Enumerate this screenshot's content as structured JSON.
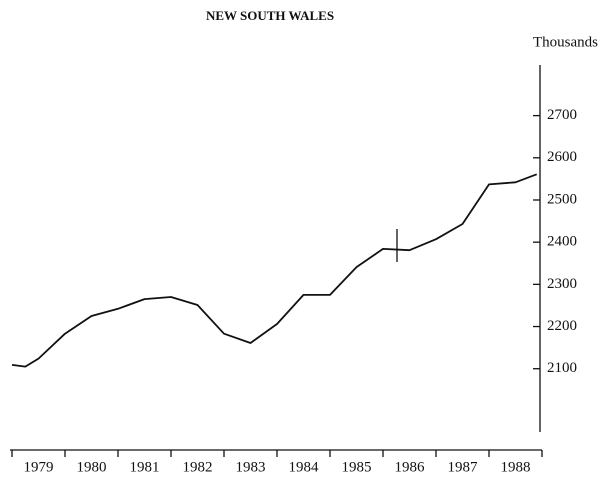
{
  "chart_data": {
    "type": "line",
    "title": "NEW SOUTH WALES",
    "y_axis_label": "Thousands",
    "x": [
      1979.0,
      1979.25,
      1979.5,
      1980.0,
      1980.5,
      1981.0,
      1981.5,
      1982.0,
      1982.5,
      1983.0,
      1983.5,
      1984.0,
      1984.5,
      1985.0,
      1985.5,
      1986.0,
      1986.5,
      1987.0,
      1987.5,
      1988.0,
      1988.5,
      1988.9
    ],
    "series": [
      {
        "color": "#111111",
        "values": [
          2109,
          2105,
          2124,
          2183,
          2225,
          2242,
          2265,
          2270,
          2251,
          2183,
          2161,
          2206,
          2275,
          2275,
          2341,
          2384,
          2381,
          2407,
          2443,
          2537,
          2542,
          2561
        ]
      }
    ],
    "categories": [
      "1979",
      "1980",
      "1981",
      "1982",
      "1983",
      "1984",
      "1985",
      "1986",
      "1987",
      "1988"
    ],
    "xlim": [
      1979,
      1989
    ],
    "xticks": [
      1979,
      1980,
      1981,
      1982,
      1983,
      1984,
      1985,
      1986,
      1987,
      1988,
      1989
    ],
    "ylim": [
      1950,
      2820
    ],
    "yticks": [
      2100,
      2200,
      2300,
      2400,
      2500,
      2600,
      2700
    ],
    "y_axis_side": "right",
    "grid": false
  }
}
